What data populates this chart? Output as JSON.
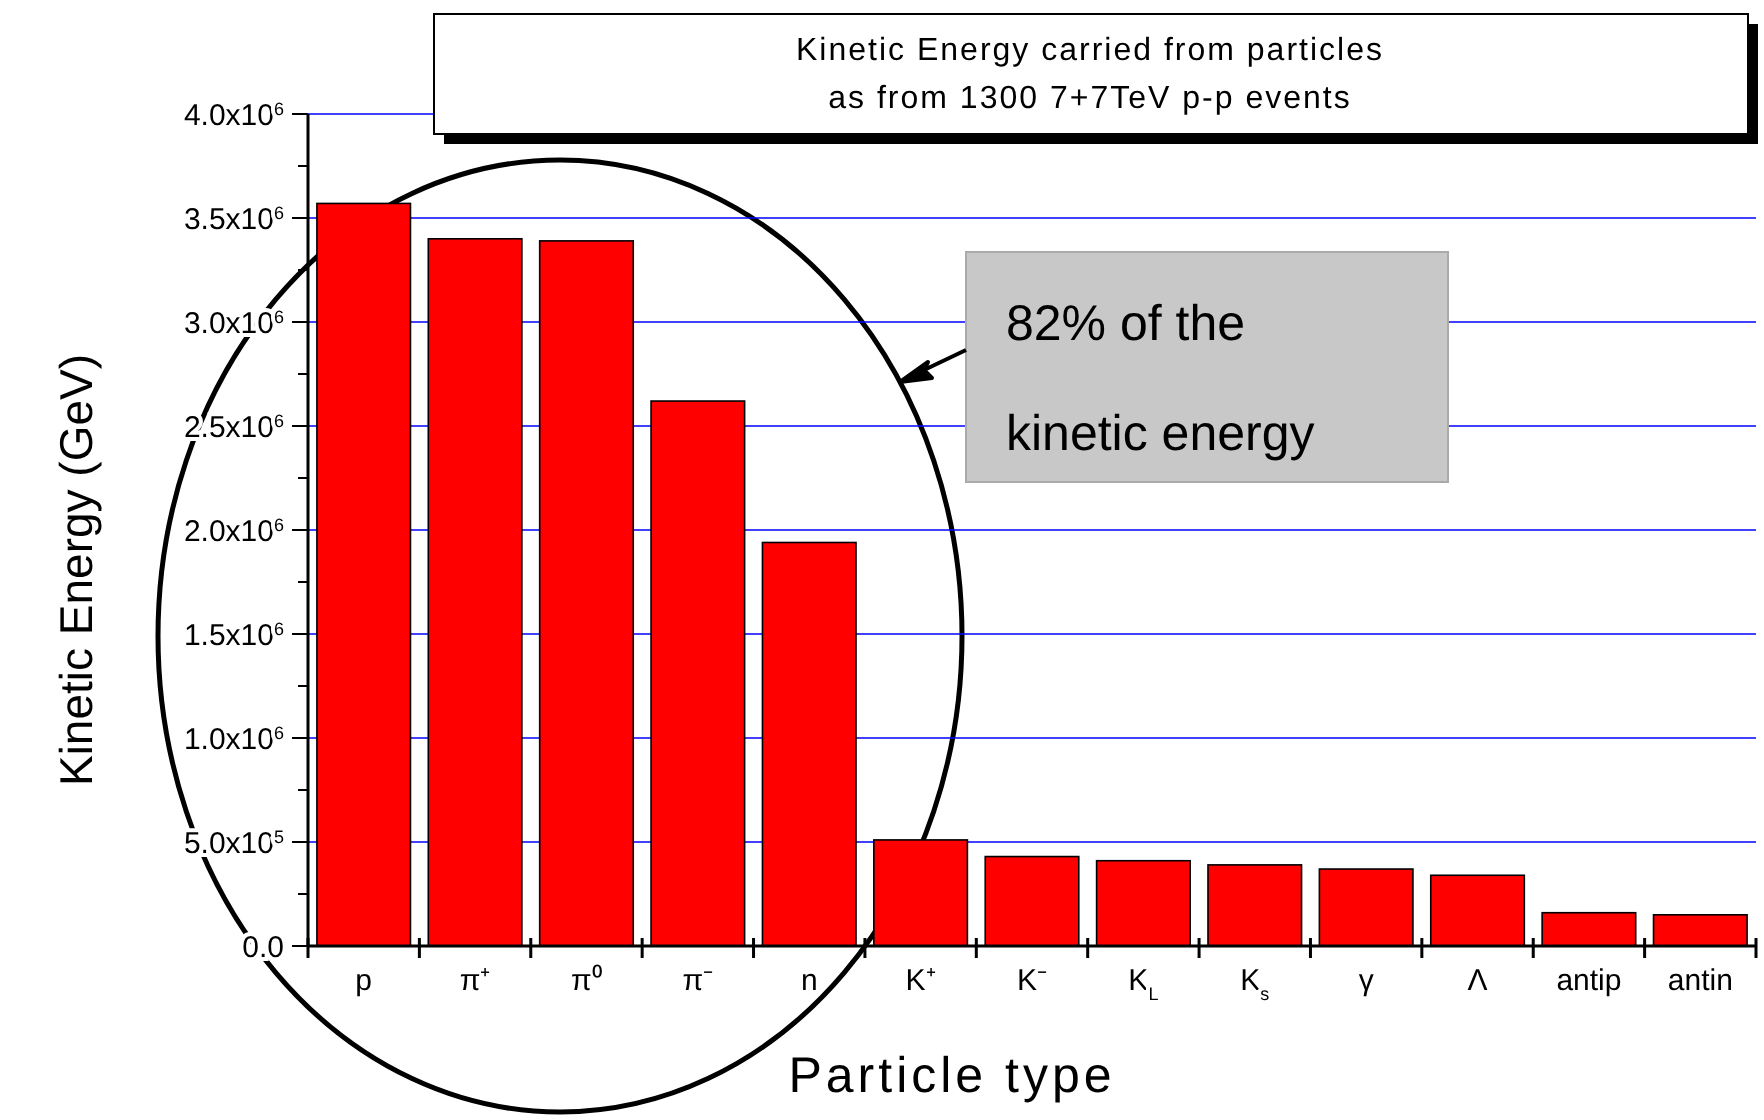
{
  "chart_data": {
    "type": "bar",
    "title": "Kinetic Energy carried from particles\nas from 1300 7+7TeV p-p events",
    "xlabel": "Particle type",
    "ylabel": "Kinetic Energy (GeV)",
    "categories": [
      "p",
      "π⁺",
      "π⁰",
      "π⁻",
      "n",
      "K⁺",
      "K⁻",
      "K$_{L}$",
      "K$_{s}$",
      "γ",
      "Λ",
      "antip",
      "antin"
    ],
    "values": [
      3570000,
      3400000,
      3390000,
      2620000,
      1940000,
      510000,
      430000,
      410000,
      390000,
      370000,
      340000,
      160000,
      150000
    ],
    "color": "#ff0000",
    "ylim": [
      0,
      4000000
    ],
    "yticks": [
      {
        "value": 0,
        "label": "0.0"
      },
      {
        "value": 500000,
        "label": "5.0x10$^{5}$"
      },
      {
        "value": 1000000,
        "label": "1.0x10$^{6}$"
      },
      {
        "value": 1500000,
        "label": "1.5x10$^{6}$"
      },
      {
        "value": 2000000,
        "label": "2.0x10$^{6}$"
      },
      {
        "value": 2500000,
        "label": "2.5x10$^{6}$"
      },
      {
        "value": 3000000,
        "label": "3.0x10$^{6}$"
      },
      {
        "value": 3500000,
        "label": "3.5x10$^{6}$"
      },
      {
        "value": 4000000,
        "label": "4.0x10$^{6}$"
      }
    ],
    "grid": "y",
    "annotations": [
      "82% of the\nkinetic energy"
    ]
  }
}
